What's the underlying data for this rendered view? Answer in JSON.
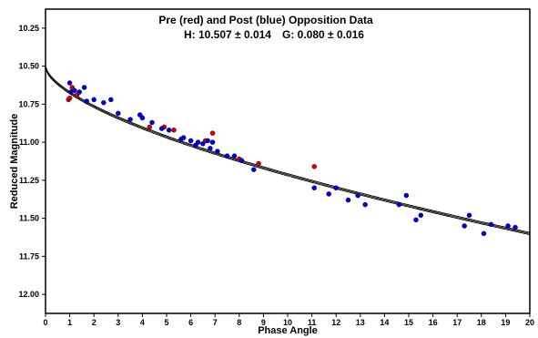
{
  "chart_data": {
    "type": "scatter",
    "title": "Pre (red) and Post (blue) Opposition Data",
    "subtitle_h": "H: 10.507 ± 0.014",
    "subtitle_g": "G: 0.080 ± 0.016",
    "xlabel": "Phase Angle",
    "ylabel": "Reduced Magnitude",
    "xlim": [
      0,
      20
    ],
    "ylim": [
      10.125,
      12.125
    ],
    "y_inverted": true,
    "x_ticks": [
      "0",
      "1",
      "2",
      "3",
      "4",
      "5",
      "6",
      "7",
      "8",
      "9",
      "10",
      "11",
      "12",
      "13",
      "14",
      "15",
      "16",
      "17",
      "18",
      "19",
      "20"
    ],
    "y_ticks": [
      "10.25",
      "10.50",
      "10.75",
      "11.00",
      "11.25",
      "11.50",
      "11.75",
      "12.00"
    ],
    "fit": {
      "H": 10.507,
      "G": 0.08
    },
    "colors": {
      "pre": "#cc0000",
      "post": "#0000cc",
      "fit": "#000000"
    },
    "series": [
      {
        "name": "Pre",
        "color": "#cc0000",
        "points": [
          [
            0.95,
            10.72
          ],
          [
            1.0,
            10.71
          ],
          [
            1.1,
            10.64
          ],
          [
            1.3,
            10.69
          ],
          [
            4.3,
            10.9
          ],
          [
            4.9,
            10.9
          ],
          [
            5.3,
            10.92
          ],
          [
            6.6,
            10.99
          ],
          [
            6.9,
            10.94
          ],
          [
            8.0,
            11.11
          ],
          [
            8.8,
            11.14
          ],
          [
            11.1,
            11.16
          ]
        ]
      },
      {
        "name": "Post",
        "color": "#0000cc",
        "points": [
          [
            1.0,
            10.61
          ],
          [
            1.05,
            10.67
          ],
          [
            1.2,
            10.66
          ],
          [
            1.4,
            10.67
          ],
          [
            1.6,
            10.64
          ],
          [
            1.7,
            10.73
          ],
          [
            2.0,
            10.72
          ],
          [
            2.4,
            10.74
          ],
          [
            2.7,
            10.72
          ],
          [
            3.0,
            10.81
          ],
          [
            3.5,
            10.85
          ],
          [
            3.9,
            10.82
          ],
          [
            4.0,
            10.84
          ],
          [
            4.4,
            10.87
          ],
          [
            4.8,
            10.91
          ],
          [
            5.1,
            10.92
          ],
          [
            5.6,
            10.98
          ],
          [
            5.7,
            10.97
          ],
          [
            6.0,
            10.99
          ],
          [
            6.2,
            11.02
          ],
          [
            6.3,
            11.0
          ],
          [
            6.5,
            11.01
          ],
          [
            6.7,
            10.99
          ],
          [
            6.8,
            11.04
          ],
          [
            6.9,
            11.0
          ],
          [
            7.1,
            11.06
          ],
          [
            7.5,
            11.09
          ],
          [
            7.8,
            11.09
          ],
          [
            8.1,
            11.12
          ],
          [
            8.6,
            11.18
          ],
          [
            11.1,
            11.3
          ],
          [
            11.7,
            11.34
          ],
          [
            12.0,
            11.3
          ],
          [
            12.5,
            11.38
          ],
          [
            12.9,
            11.35
          ],
          [
            13.2,
            11.41
          ],
          [
            14.6,
            11.41
          ],
          [
            14.9,
            11.35
          ],
          [
            15.3,
            11.51
          ],
          [
            15.5,
            11.48
          ],
          [
            17.3,
            11.55
          ],
          [
            17.5,
            11.48
          ],
          [
            18.1,
            11.6
          ],
          [
            18.4,
            11.54
          ],
          [
            19.1,
            11.55
          ],
          [
            19.4,
            11.56
          ]
        ]
      }
    ]
  }
}
